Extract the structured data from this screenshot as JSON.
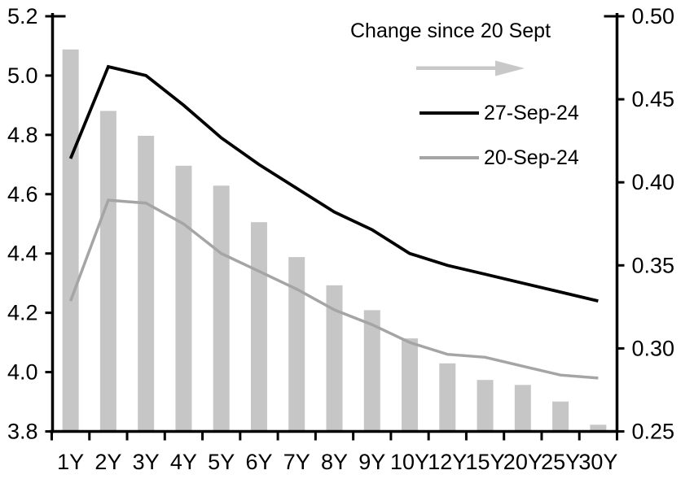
{
  "chart_data": {
    "type": "combo",
    "title": "",
    "categories": [
      "1Y",
      "2Y",
      "3Y",
      "4Y",
      "5Y",
      "6Y",
      "7Y",
      "8Y",
      "9Y",
      "10Y",
      "12Y",
      "15Y",
      "20Y",
      "25Y",
      "30Y"
    ],
    "series": [
      {
        "name": "Change since 20 Sept",
        "type": "bar",
        "axis": "right",
        "color": "#c6c6c6",
        "values": [
          0.48,
          0.443,
          0.428,
          0.41,
          0.398,
          0.376,
          0.355,
          0.338,
          0.323,
          0.306,
          0.291,
          0.281,
          0.278,
          0.268,
          0.254
        ]
      },
      {
        "name": "27-Sep-24",
        "type": "line",
        "axis": "left",
        "color": "#000000",
        "values": [
          4.72,
          5.03,
          5.0,
          4.9,
          4.79,
          4.7,
          4.62,
          4.54,
          4.48,
          4.4,
          4.36,
          4.33,
          4.3,
          4.27,
          4.24
        ]
      },
      {
        "name": "20-Sep-24",
        "type": "line",
        "axis": "left",
        "color": "#a5a5a5",
        "values": [
          4.24,
          4.58,
          4.57,
          4.5,
          4.4,
          4.34,
          4.28,
          4.21,
          4.16,
          4.1,
          4.06,
          4.05,
          4.02,
          3.99,
          3.98
        ]
      }
    ],
    "left_axis": {
      "min": 3.8,
      "max": 5.2,
      "tick_labels": [
        "5.2",
        "5.0",
        "4.8",
        "4.6",
        "4.4",
        "4.2",
        "4.0",
        "3.8"
      ]
    },
    "right_axis": {
      "min": 0.25,
      "max": 0.5,
      "tick_labels": [
        "0.50",
        "0.45",
        "0.40",
        "0.35",
        "0.30",
        "0.25"
      ]
    },
    "legend": {
      "position": "top-right",
      "arrow_color": "#c8c8c8"
    },
    "grid": false,
    "axis_color": "#000000",
    "background": "#ffffff"
  }
}
